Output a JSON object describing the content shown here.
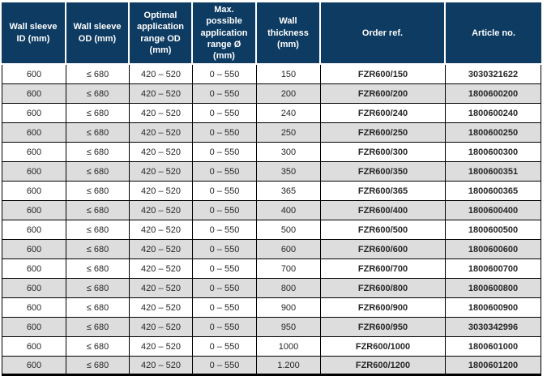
{
  "colors": {
    "header_bg": "#0d3b62",
    "header_text": "#ffffff",
    "row_alt_bg": "#dddddd",
    "border": "#000000",
    "body_text": "#262626"
  },
  "table": {
    "columns": [
      {
        "label": "Wall sleeve ID (mm)"
      },
      {
        "label": "Wall sleeve OD (mm)"
      },
      {
        "label": "Optimal application range OD (mm)"
      },
      {
        "label": "Max. possible application range Ø (mm)"
      },
      {
        "label": "Wall thickness (mm)"
      },
      {
        "label": "Order ref."
      },
      {
        "label": "Article no."
      }
    ],
    "rows": [
      [
        "600",
        "≤ 680",
        "420 – 520",
        "0 – 550",
        "150",
        "FZR600/150",
        "3030321622"
      ],
      [
        "600",
        "≤ 680",
        "420 – 520",
        "0 – 550",
        "200",
        "FZR600/200",
        "1800600200"
      ],
      [
        "600",
        "≤ 680",
        "420 – 520",
        "0 – 550",
        "240",
        "FZR600/240",
        "1800600240"
      ],
      [
        "600",
        "≤ 680",
        "420 – 520",
        "0 – 550",
        "250",
        "FZR600/250",
        "1800600250"
      ],
      [
        "600",
        "≤ 680",
        "420 – 520",
        "0 – 550",
        "300",
        "FZR600/300",
        "1800600300"
      ],
      [
        "600",
        "≤ 680",
        "420 – 520",
        "0 – 550",
        "350",
        "FZR600/350",
        "1800600351"
      ],
      [
        "600",
        "≤ 680",
        "420 – 520",
        "0 – 550",
        "365",
        "FZR600/365",
        "1800600365"
      ],
      [
        "600",
        "≤ 680",
        "420 – 520",
        "0 – 550",
        "400",
        "FZR600/400",
        "1800600400"
      ],
      [
        "600",
        "≤ 680",
        "420 – 520",
        "0 – 550",
        "500",
        "FZR600/500",
        "1800600500"
      ],
      [
        "600",
        "≤ 680",
        "420 – 520",
        "0 – 550",
        "600",
        "FZR600/600",
        "1800600600"
      ],
      [
        "600",
        "≤ 680",
        "420 – 520",
        "0 – 550",
        "700",
        "FZR600/700",
        "1800600700"
      ],
      [
        "600",
        "≤ 680",
        "420 – 520",
        "0 – 550",
        "800",
        "FZR600/800",
        "1800600800"
      ],
      [
        "600",
        "≤ 680",
        "420 – 520",
        "0 – 550",
        "900",
        "FZR600/900",
        "1800600900"
      ],
      [
        "600",
        "≤ 680",
        "420 – 520",
        "0 – 550",
        "950",
        "FZR600/950",
        "3030342996"
      ],
      [
        "600",
        "≤ 680",
        "420 – 520",
        "0 – 550",
        "1000",
        "FZR600/1000",
        "1800601000"
      ],
      [
        "600",
        "≤ 680",
        "420 – 520",
        "0 – 550",
        "1.200",
        "FZR600/1200",
        "1800601200"
      ]
    ],
    "bold_columns": [
      5,
      6
    ]
  }
}
